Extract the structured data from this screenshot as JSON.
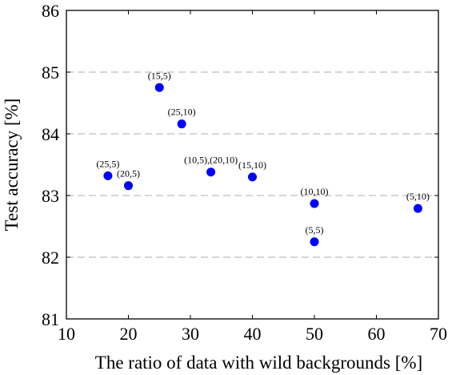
{
  "chart_data": {
    "type": "scatter",
    "xlabel": "The ratio of data with wild backgrounds [%]",
    "ylabel": "Test accuracy [%]",
    "xlim": [
      10,
      70
    ],
    "ylim": [
      81,
      86
    ],
    "xticks": [
      10,
      20,
      30,
      40,
      50,
      60,
      70
    ],
    "yticks": [
      81,
      82,
      83,
      84,
      85,
      86
    ],
    "grid": "horizontal dashed",
    "marker_color": "#0000ff",
    "points": [
      {
        "label": "(25,5)",
        "x": 16.7,
        "y": 83.32
      },
      {
        "label": "(20,5)",
        "x": 20.0,
        "y": 83.16
      },
      {
        "label": "(15,5)",
        "x": 25.0,
        "y": 84.75
      },
      {
        "label": "(25,10)",
        "x": 28.6,
        "y": 84.16
      },
      {
        "label": "(10,5),(20,10)",
        "x": 33.3,
        "y": 83.38
      },
      {
        "label": "(15,10)",
        "x": 40.0,
        "y": 83.3
      },
      {
        "label": "(10,10)",
        "x": 50.0,
        "y": 82.87
      },
      {
        "label": "(5,5)",
        "x": 50.0,
        "y": 82.25
      },
      {
        "label": "(5,10)",
        "x": 66.7,
        "y": 82.79
      }
    ]
  }
}
